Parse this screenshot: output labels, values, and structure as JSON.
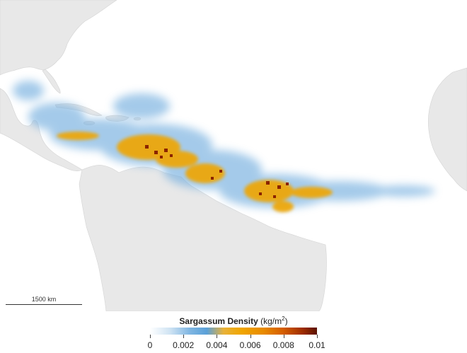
{
  "legend": {
    "title_bold": "Sargassum Density",
    "title_unit": "(kg/m",
    "title_unit_sup": "2",
    "title_unit_close": ")",
    "tick_labels": [
      "0",
      "0.002",
      "0.004",
      "0.006",
      "0.008",
      "0.01"
    ],
    "min": 0,
    "max": 0.01,
    "colors": [
      "#ffffff",
      "#7fb6e2",
      "#5aa0d8",
      "#f0a500",
      "#d45c00",
      "#5a1200"
    ]
  },
  "scale": {
    "label": "1500 km"
  },
  "map": {
    "ocean_color": "#ffffff",
    "land_color": "#e6e6e6",
    "low_density_color": "#6aa9dd",
    "medium_density_color": "#f0a500",
    "high_density_color": "#7a1a00"
  }
}
